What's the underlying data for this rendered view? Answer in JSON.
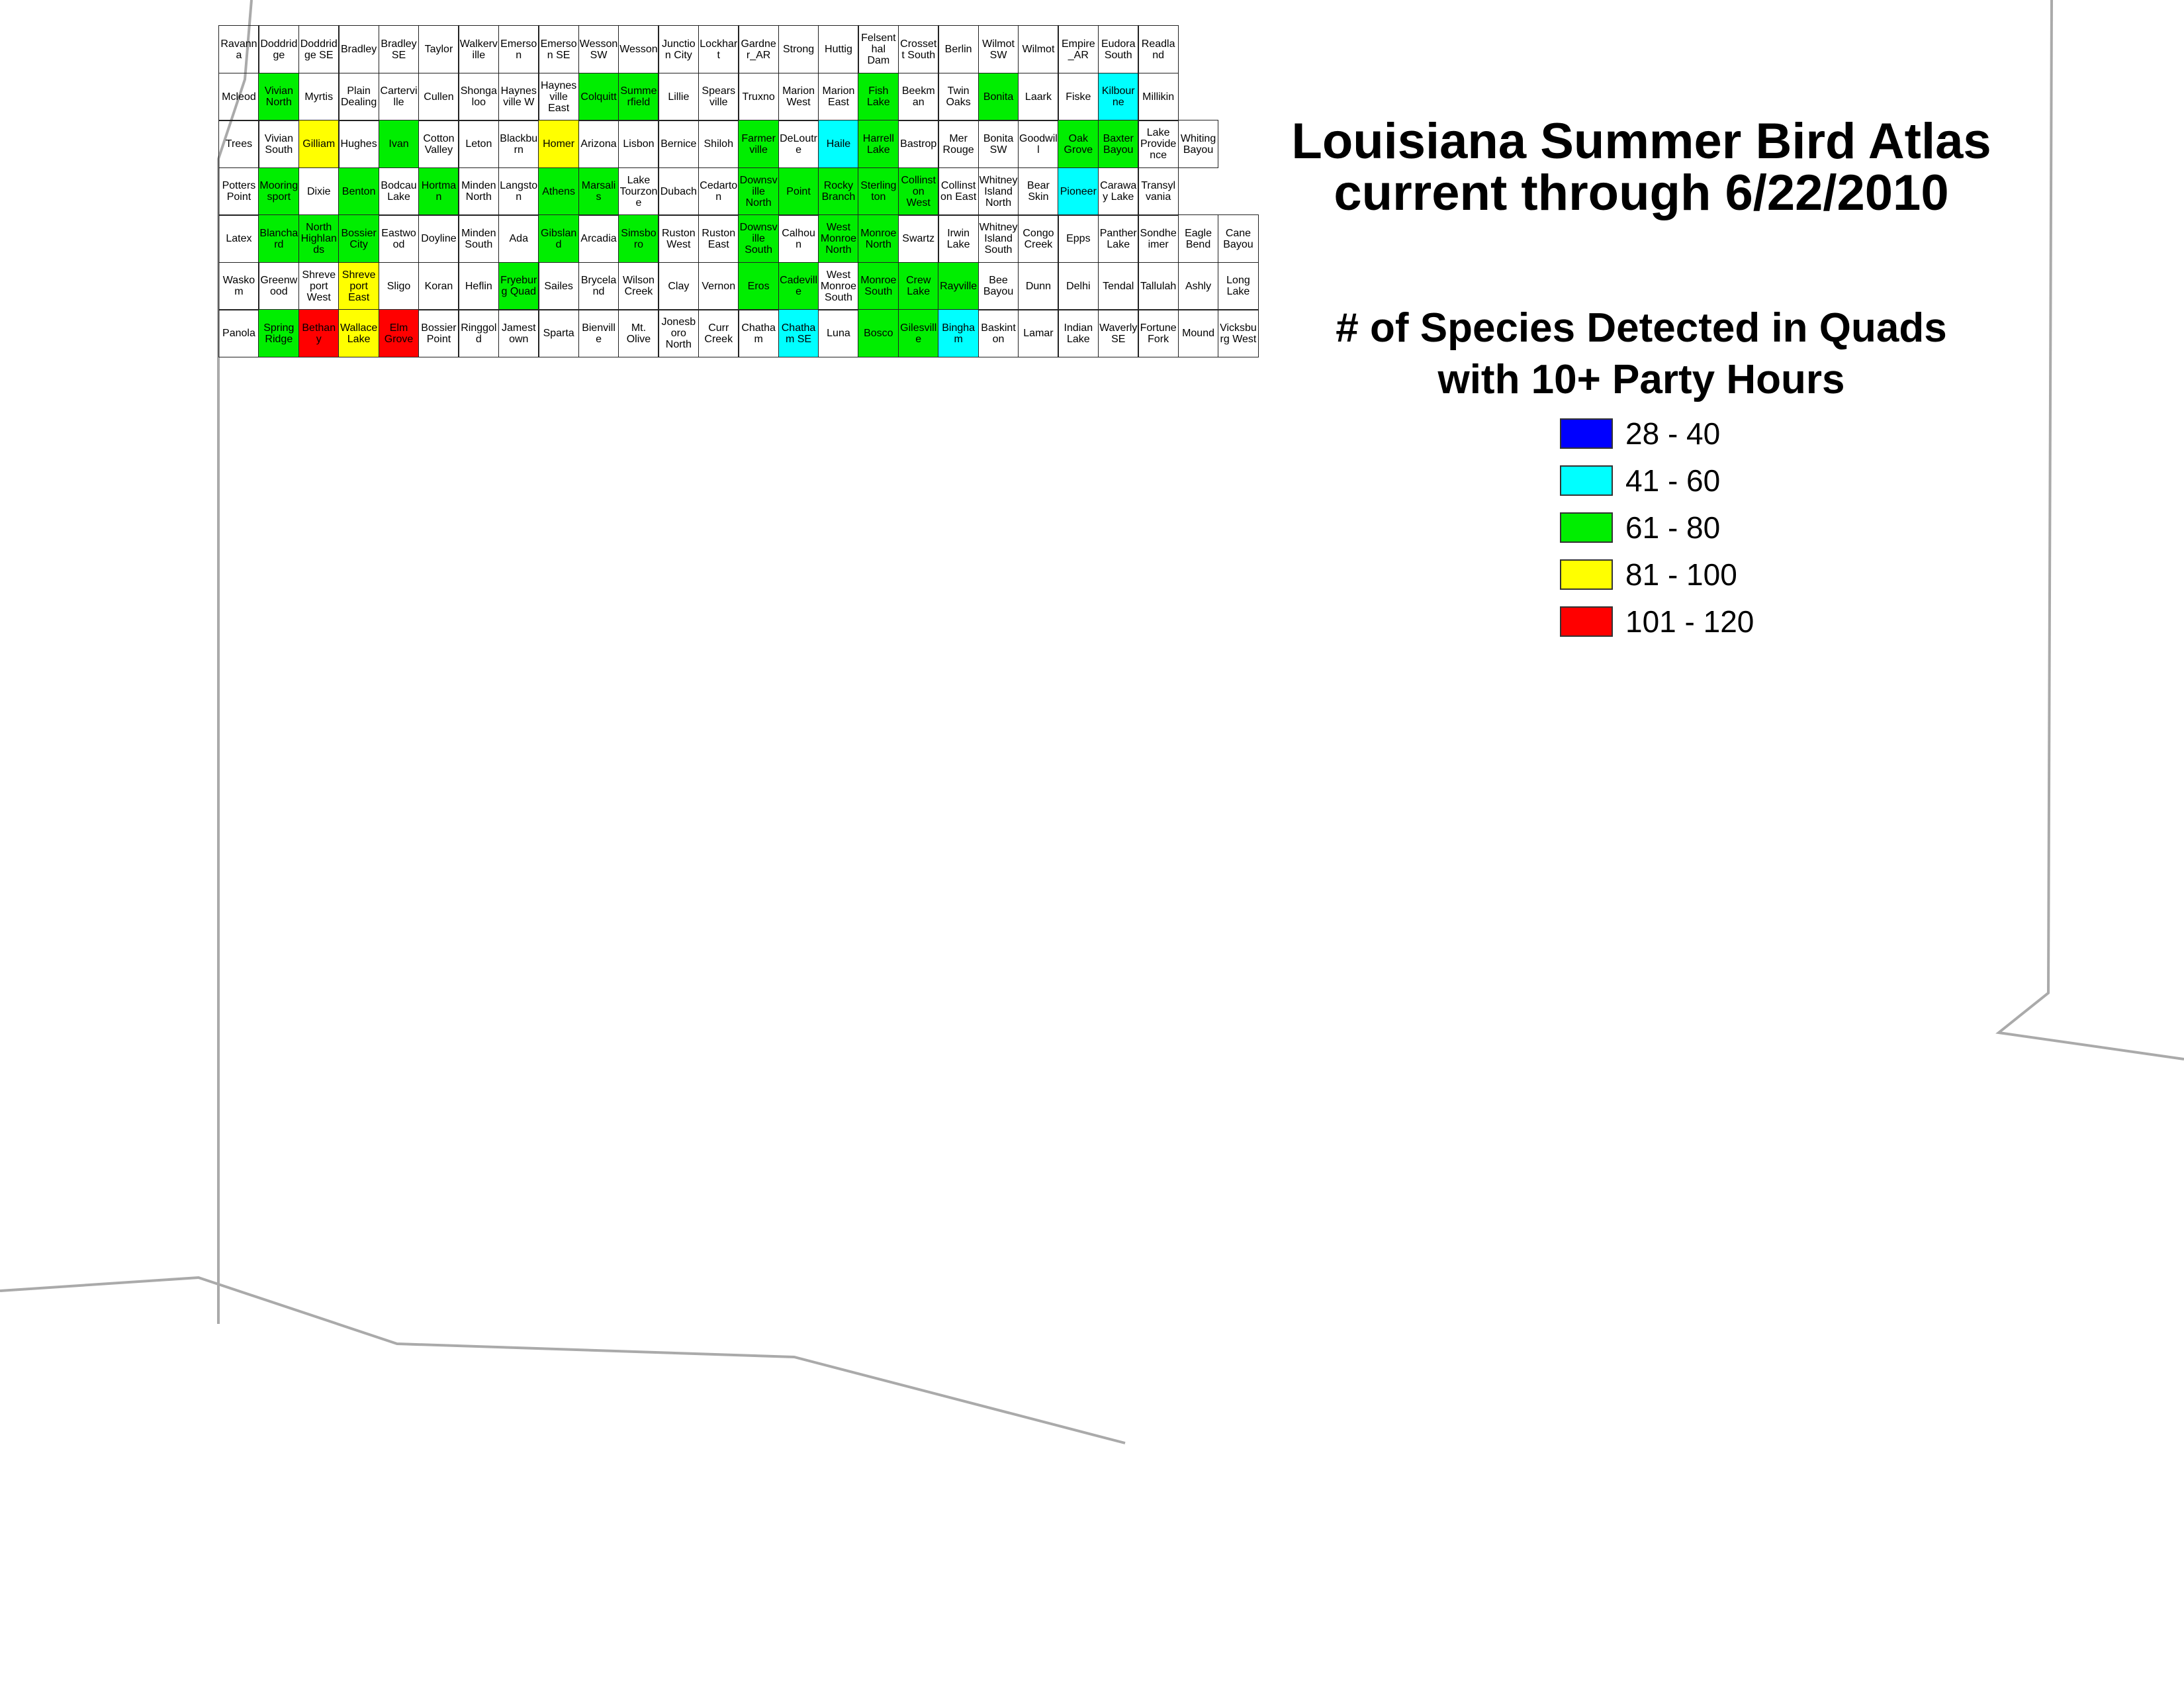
{
  "title": [
    "Louisiana Summer Bird Atlas",
    "current through 6/22/2010"
  ],
  "legend": {
    "title": [
      "# of Species Detected in Quads",
      "with 10+ Party Hours"
    ],
    "items": [
      {
        "label": "28 - 40",
        "color": "#0000ff"
      },
      {
        "label": "41 - 60",
        "color": "#00ffff"
      },
      {
        "label": "61 - 80",
        "color": "#00ee00"
      },
      {
        "label": "81 - 100",
        "color": "#ffff00"
      },
      {
        "label": "101 - 120",
        "color": "#ff0000"
      }
    ]
  },
  "quads": [
    [
      {
        "name": "Ravanna"
      },
      {
        "name": "Doddridge"
      },
      {
        "name": "Doddridge SE"
      },
      {
        "name": "Bradley"
      },
      {
        "name": "Bradley SE"
      },
      {
        "name": "Taylor"
      },
      {
        "name": "Walkerville"
      },
      {
        "name": "Emerson"
      },
      {
        "name": "Emerson SE"
      },
      {
        "name": "Wesson SW"
      },
      {
        "name": "Wesson"
      },
      {
        "name": "Junction City"
      },
      {
        "name": "Lockhart"
      },
      {
        "name": "Gardner_AR"
      },
      {
        "name": "Strong"
      },
      {
        "name": "Huttig"
      },
      {
        "name": "Felsenthal Dam"
      },
      {
        "name": "Crossett South"
      },
      {
        "name": "Berlin"
      },
      {
        "name": "Wilmot SW"
      },
      {
        "name": "Wilmot"
      },
      {
        "name": "Empire_AR"
      },
      {
        "name": "Eudora South"
      },
      {
        "name": "Readland"
      }
    ],
    [
      {
        "name": "Mcleod"
      },
      {
        "name": "Vivian North",
        "bin": 2
      },
      {
        "name": "Myrtis"
      },
      {
        "name": "Plain Dealing"
      },
      {
        "name": "Carterville"
      },
      {
        "name": "Cullen"
      },
      {
        "name": "Shongaloo"
      },
      {
        "name": "Haynesville W"
      },
      {
        "name": "Haynesville East"
      },
      {
        "name": "Colquitt",
        "bin": 2
      },
      {
        "name": "Summerfield",
        "bin": 2
      },
      {
        "name": "Lillie"
      },
      {
        "name": "Spearsville"
      },
      {
        "name": "Truxno"
      },
      {
        "name": "Marion West"
      },
      {
        "name": "Marion East"
      },
      {
        "name": "Fish Lake",
        "bin": 2
      },
      {
        "name": "Beekman"
      },
      {
        "name": "Twin Oaks"
      },
      {
        "name": "Bonita",
        "bin": 2
      },
      {
        "name": "Laark"
      },
      {
        "name": "Fiske"
      },
      {
        "name": "Kilbourne",
        "bin": 1
      },
      {
        "name": "Millikin"
      }
    ],
    [
      {
        "name": "Trees"
      },
      {
        "name": "Vivian South"
      },
      {
        "name": "Gilliam",
        "bin": 3
      },
      {
        "name": "Hughes"
      },
      {
        "name": "Ivan",
        "bin": 2
      },
      {
        "name": "Cotton Valley"
      },
      {
        "name": "Leton"
      },
      {
        "name": "Blackburn"
      },
      {
        "name": "Homer",
        "bin": 3
      },
      {
        "name": "Arizona"
      },
      {
        "name": "Lisbon"
      },
      {
        "name": "Bernice"
      },
      {
        "name": "Shiloh"
      },
      {
        "name": "Farmerville",
        "bin": 2
      },
      {
        "name": "DeLoutre"
      },
      {
        "name": "Haile",
        "bin": 1
      },
      {
        "name": "Harrell Lake",
        "bin": 2
      },
      {
        "name": "Bastrop"
      },
      {
        "name": "Mer Rouge"
      },
      {
        "name": "Bonita SW"
      },
      {
        "name": "Goodwill"
      },
      {
        "name": "Oak Grove",
        "bin": 2
      },
      {
        "name": "Baxter Bayou",
        "bin": 2
      },
      {
        "name": "Lake Providence"
      },
      {
        "name": "Whiting Bayou"
      }
    ],
    [
      {
        "name": "Potters Point"
      },
      {
        "name": "Mooringsport",
        "bin": 2
      },
      {
        "name": "Dixie"
      },
      {
        "name": "Benton",
        "bin": 2
      },
      {
        "name": "Bodcau Lake"
      },
      {
        "name": "Hortman",
        "bin": 2
      },
      {
        "name": "Minden North"
      },
      {
        "name": "Langston"
      },
      {
        "name": "Athens",
        "bin": 2
      },
      {
        "name": "Marsalis",
        "bin": 2
      },
      {
        "name": "Lake Tourzone"
      },
      {
        "name": "Dubach"
      },
      {
        "name": "Cedarton"
      },
      {
        "name": "Downsville North",
        "bin": 2
      },
      {
        "name": "Point",
        "bin": 2
      },
      {
        "name": "Rocky Branch",
        "bin": 2
      },
      {
        "name": "Sterlington",
        "bin": 2
      },
      {
        "name": "Collinston West",
        "bin": 2
      },
      {
        "name": "Collinston East"
      },
      {
        "name": "Whitney Island North"
      },
      {
        "name": "Bear Skin"
      },
      {
        "name": "Pioneer",
        "bin": 1
      },
      {
        "name": "Caraway Lake"
      },
      {
        "name": "Transylvania"
      }
    ],
    [
      {
        "name": "Latex"
      },
      {
        "name": "Blanchard",
        "bin": 2
      },
      {
        "name": "North Highlands",
        "bin": 2
      },
      {
        "name": "Bossier City",
        "bin": 2
      },
      {
        "name": "Eastwood"
      },
      {
        "name": "Doyline"
      },
      {
        "name": "Minden South"
      },
      {
        "name": "Ada"
      },
      {
        "name": "Gibsland",
        "bin": 2
      },
      {
        "name": "Arcadia"
      },
      {
        "name": "Simsboro",
        "bin": 2
      },
      {
        "name": "Ruston West"
      },
      {
        "name": "Ruston East"
      },
      {
        "name": "Downsville South",
        "bin": 2
      },
      {
        "name": "Calhoun"
      },
      {
        "name": "West Monroe North",
        "bin": 2
      },
      {
        "name": "Monroe North",
        "bin": 2
      },
      {
        "name": "Swartz"
      },
      {
        "name": "Irwin Lake"
      },
      {
        "name": "Whitney Island South"
      },
      {
        "name": "Congo Creek"
      },
      {
        "name": "Epps"
      },
      {
        "name": "Panther Lake"
      },
      {
        "name": "Sondheimer"
      },
      {
        "name": "Eagle Bend"
      },
      {
        "name": "Cane Bayou"
      }
    ],
    [
      {
        "name": "Waskom"
      },
      {
        "name": "Greenwood"
      },
      {
        "name": "Shreveport West"
      },
      {
        "name": "Shreveport East",
        "bin": 3
      },
      {
        "name": "Sligo"
      },
      {
        "name": "Koran"
      },
      {
        "name": "Heflin"
      },
      {
        "name": "Fryeburg Quad",
        "bin": 2
      },
      {
        "name": "Sailes"
      },
      {
        "name": "Bryceland"
      },
      {
        "name": "Wilson Creek"
      },
      {
        "name": "Clay"
      },
      {
        "name": "Vernon"
      },
      {
        "name": "Eros",
        "bin": 2
      },
      {
        "name": "Cadeville",
        "bin": 2
      },
      {
        "name": "West Monroe South"
      },
      {
        "name": "Monroe South",
        "bin": 2
      },
      {
        "name": "Crew Lake",
        "bin": 2
      },
      {
        "name": "Rayville",
        "bin": 2
      },
      {
        "name": "Bee Bayou"
      },
      {
        "name": "Dunn"
      },
      {
        "name": "Delhi"
      },
      {
        "name": "Tendal"
      },
      {
        "name": "Tallulah"
      },
      {
        "name": "Ashly"
      },
      {
        "name": "Long Lake"
      }
    ],
    [
      {
        "name": "Panola"
      },
      {
        "name": "Spring Ridge",
        "bin": 2
      },
      {
        "name": "Bethany",
        "bin": 4
      },
      {
        "name": "Wallace Lake",
        "bin": 3
      },
      {
        "name": "Elm Grove",
        "bin": 4
      },
      {
        "name": "Bossier Point"
      },
      {
        "name": "Ringgold"
      },
      {
        "name": "Jamestown"
      },
      {
        "name": "Sparta"
      },
      {
        "name": "Bienville"
      },
      {
        "name": "Mt. Olive"
      },
      {
        "name": "Jonesboro North"
      },
      {
        "name": "Curr Creek"
      },
      {
        "name": "Chatham"
      },
      {
        "name": "Chatham SE",
        "bin": 1
      },
      {
        "name": "Luna"
      },
      {
        "name": "Bosco",
        "bin": 2
      },
      {
        "name": "Gilesville",
        "bin": 2
      },
      {
        "name": "Bingham",
        "bin": 1
      },
      {
        "name": "Baskinton"
      },
      {
        "name": "Lamar"
      },
      {
        "name": "Indian Lake"
      },
      {
        "name": "Waverly SE"
      },
      {
        "name": "Fortune Fork"
      },
      {
        "name": "Mound"
      },
      {
        "name": "Vicksburg West"
      }
    ]
  ]
}
